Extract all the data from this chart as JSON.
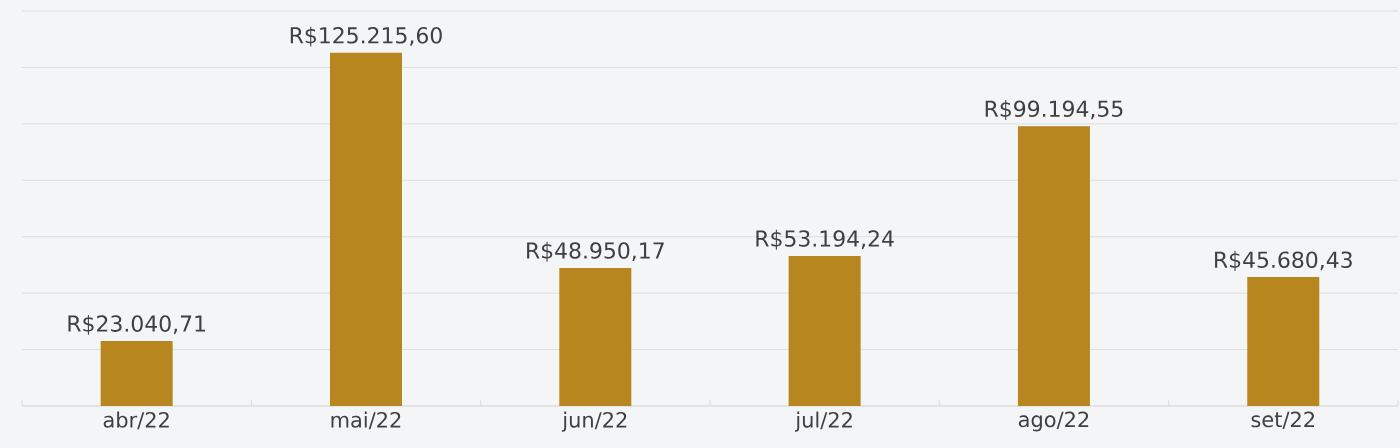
{
  "chart_data": {
    "type": "bar",
    "categories": [
      "abr/22",
      "mai/22",
      "jun/22",
      "jul/22",
      "ago/22",
      "set/22"
    ],
    "values": [
      23040.71,
      125215.6,
      48950.17,
      53194.24,
      99194.55,
      45680.43
    ],
    "value_labels": [
      "R$23.040,71",
      "R$125.215,60",
      "R$48.950,17",
      "R$53.194,24",
      "R$99.194,55",
      "R$45.680,43"
    ],
    "color": "#b8861f",
    "ylim": [
      0,
      140000
    ],
    "yticks": [
      {
        "value": 0,
        "label": null
      },
      {
        "value": 20000,
        "label": null
      },
      {
        "value": 40000,
        "label": null
      },
      {
        "value": 60000,
        "label": null
      },
      {
        "value": 80000,
        "label": null
      },
      {
        "value": 100000,
        "label": null
      },
      {
        "value": 120000,
        "label": null
      },
      {
        "value": 140000,
        "label": null
      }
    ],
    "grid": "y",
    "tick_labels": "x"
  }
}
